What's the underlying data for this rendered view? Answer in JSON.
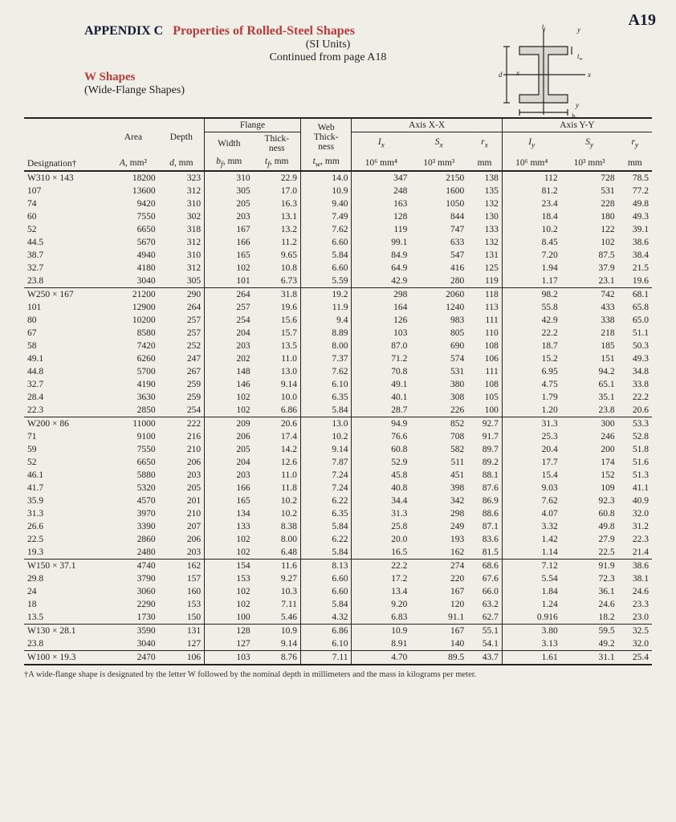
{
  "page_label": "A19",
  "appendix": "APPENDIX C",
  "title": "Properties of Rolled-Steel Shapes",
  "subtitle": "(SI Units)",
  "continued": "Continued from page A18",
  "section": "W Shapes",
  "section_sub": "(Wide-Flange Shapes)",
  "footnote": "†A wide-flange shape is designated by the letter W followed by the nominal depth in millimeters and the mass in kilograms per meter.",
  "colors": {
    "red": "#b93a3a",
    "text": "#222222",
    "bg": "#efefe7"
  },
  "headers": {
    "designation": "Designation†",
    "area": "Area",
    "area_u": "A, mm²",
    "depth": "Depth",
    "depth_u": "d, mm",
    "flange": "Flange",
    "width": "Width",
    "width_u": "b_f, mm",
    "fthick": "Thick-\nness",
    "fthick_u": "t_f, mm",
    "web": "Web\nThick-\nness",
    "web_u": "t_w, mm",
    "axisxx": "Axis X-X",
    "axisyy": "Axis Y-Y",
    "Ix": "I_x",
    "Ix_u": "10⁶ mm⁴",
    "Sx": "S_x",
    "Sx_u": "10³ mm³",
    "rx": "r_x",
    "rx_u": "mm",
    "Iy": "I_y",
    "Iy_u": "10⁶ mm⁴",
    "Sy": "S_y",
    "Sy_u": "10³ mm³",
    "ry": "r_y",
    "ry_u": "mm"
  },
  "groups": [
    {
      "prefix": "W310 ×",
      "rows": [
        {
          "m": "143",
          "A": "18200",
          "d": "323",
          "bf": "310",
          "tf": "22.9",
          "tw": "14.0",
          "Ix": "347",
          "Sx": "2150",
          "rx": "138",
          "Iy": "112",
          "Sy": "728",
          "ry": "78.5"
        },
        {
          "m": "107",
          "A": "13600",
          "d": "312",
          "bf": "305",
          "tf": "17.0",
          "tw": "10.9",
          "Ix": "248",
          "Sx": "1600",
          "rx": "135",
          "Iy": "81.2",
          "Sy": "531",
          "ry": "77.2"
        },
        {
          "m": "74",
          "A": "9420",
          "d": "310",
          "bf": "205",
          "tf": "16.3",
          "tw": "9.40",
          "Ix": "163",
          "Sx": "1050",
          "rx": "132",
          "Iy": "23.4",
          "Sy": "228",
          "ry": "49.8"
        },
        {
          "m": "60",
          "A": "7550",
          "d": "302",
          "bf": "203",
          "tf": "13.1",
          "tw": "7.49",
          "Ix": "128",
          "Sx": "844",
          "rx": "130",
          "Iy": "18.4",
          "Sy": "180",
          "ry": "49.3"
        },
        {
          "m": "52",
          "A": "6650",
          "d": "318",
          "bf": "167",
          "tf": "13.2",
          "tw": "7.62",
          "Ix": "119",
          "Sx": "747",
          "rx": "133",
          "Iy": "10.2",
          "Sy": "122",
          "ry": "39.1"
        },
        {
          "m": "44.5",
          "A": "5670",
          "d": "312",
          "bf": "166",
          "tf": "11.2",
          "tw": "6.60",
          "Ix": "99.1",
          "Sx": "633",
          "rx": "132",
          "Iy": "8.45",
          "Sy": "102",
          "ry": "38.6"
        },
        {
          "m": "38.7",
          "A": "4940",
          "d": "310",
          "bf": "165",
          "tf": "9.65",
          "tw": "5.84",
          "Ix": "84.9",
          "Sx": "547",
          "rx": "131",
          "Iy": "7.20",
          "Sy": "87.5",
          "ry": "38.4"
        },
        {
          "m": "32.7",
          "A": "4180",
          "d": "312",
          "bf": "102",
          "tf": "10.8",
          "tw": "6.60",
          "Ix": "64.9",
          "Sx": "416",
          "rx": "125",
          "Iy": "1.94",
          "Sy": "37.9",
          "ry": "21.5"
        },
        {
          "m": "23.8",
          "A": "3040",
          "d": "305",
          "bf": "101",
          "tf": "6.73",
          "tw": "5.59",
          "Ix": "42.9",
          "Sx": "280",
          "rx": "119",
          "Iy": "1.17",
          "Sy": "23.1",
          "ry": "19.6"
        }
      ]
    },
    {
      "prefix": "W250 ×",
      "rows": [
        {
          "m": "167",
          "A": "21200",
          "d": "290",
          "bf": "264",
          "tf": "31.8",
          "tw": "19.2",
          "Ix": "298",
          "Sx": "2060",
          "rx": "118",
          "Iy": "98.2",
          "Sy": "742",
          "ry": "68.1"
        },
        {
          "m": "101",
          "A": "12900",
          "d": "264",
          "bf": "257",
          "tf": "19.6",
          "tw": "11.9",
          "Ix": "164",
          "Sx": "1240",
          "rx": "113",
          "Iy": "55.8",
          "Sy": "433",
          "ry": "65.8"
        },
        {
          "m": "80",
          "A": "10200",
          "d": "257",
          "bf": "254",
          "tf": "15.6",
          "tw": "9.4",
          "Ix": "126",
          "Sx": "983",
          "rx": "111",
          "Iy": "42.9",
          "Sy": "338",
          "ry": "65.0"
        },
        {
          "m": "67",
          "A": "8580",
          "d": "257",
          "bf": "204",
          "tf": "15.7",
          "tw": "8.89",
          "Ix": "103",
          "Sx": "805",
          "rx": "110",
          "Iy": "22.2",
          "Sy": "218",
          "ry": "51.1"
        },
        {
          "m": "58",
          "A": "7420",
          "d": "252",
          "bf": "203",
          "tf": "13.5",
          "tw": "8.00",
          "Ix": "87.0",
          "Sx": "690",
          "rx": "108",
          "Iy": "18.7",
          "Sy": "185",
          "ry": "50.3"
        },
        {
          "m": "49.1",
          "A": "6260",
          "d": "247",
          "bf": "202",
          "tf": "11.0",
          "tw": "7.37",
          "Ix": "71.2",
          "Sx": "574",
          "rx": "106",
          "Iy": "15.2",
          "Sy": "151",
          "ry": "49.3"
        },
        {
          "m": "44.8",
          "A": "5700",
          "d": "267",
          "bf": "148",
          "tf": "13.0",
          "tw": "7.62",
          "Ix": "70.8",
          "Sx": "531",
          "rx": "111",
          "Iy": "6.95",
          "Sy": "94.2",
          "ry": "34.8"
        },
        {
          "m": "32.7",
          "A": "4190",
          "d": "259",
          "bf": "146",
          "tf": "9.14",
          "tw": "6.10",
          "Ix": "49.1",
          "Sx": "380",
          "rx": "108",
          "Iy": "4.75",
          "Sy": "65.1",
          "ry": "33.8"
        },
        {
          "m": "28.4",
          "A": "3630",
          "d": "259",
          "bf": "102",
          "tf": "10.0",
          "tw": "6.35",
          "Ix": "40.1",
          "Sx": "308",
          "rx": "105",
          "Iy": "1.79",
          "Sy": "35.1",
          "ry": "22.2"
        },
        {
          "m": "22.3",
          "A": "2850",
          "d": "254",
          "bf": "102",
          "tf": "6.86",
          "tw": "5.84",
          "Ix": "28.7",
          "Sx": "226",
          "rx": "100",
          "Iy": "1.20",
          "Sy": "23.8",
          "ry": "20.6"
        }
      ]
    },
    {
      "prefix": "W200 ×",
      "rows": [
        {
          "m": "86",
          "A": "11000",
          "d": "222",
          "bf": "209",
          "tf": "20.6",
          "tw": "13.0",
          "Ix": "94.9",
          "Sx": "852",
          "rx": "92.7",
          "Iy": "31.3",
          "Sy": "300",
          "ry": "53.3"
        },
        {
          "m": "71",
          "A": "9100",
          "d": "216",
          "bf": "206",
          "tf": "17.4",
          "tw": "10.2",
          "Ix": "76.6",
          "Sx": "708",
          "rx": "91.7",
          "Iy": "25.3",
          "Sy": "246",
          "ry": "52.8"
        },
        {
          "m": "59",
          "A": "7550",
          "d": "210",
          "bf": "205",
          "tf": "14.2",
          "tw": "9.14",
          "Ix": "60.8",
          "Sx": "582",
          "rx": "89.7",
          "Iy": "20.4",
          "Sy": "200",
          "ry": "51.8"
        },
        {
          "m": "52",
          "A": "6650",
          "d": "206",
          "bf": "204",
          "tf": "12.6",
          "tw": "7.87",
          "Ix": "52.9",
          "Sx": "511",
          "rx": "89.2",
          "Iy": "17.7",
          "Sy": "174",
          "ry": "51.6"
        },
        {
          "m": "46.1",
          "A": "5880",
          "d": "203",
          "bf": "203",
          "tf": "11.0",
          "tw": "7.24",
          "Ix": "45.8",
          "Sx": "451",
          "rx": "88.1",
          "Iy": "15.4",
          "Sy": "152",
          "ry": "51.3"
        },
        {
          "m": "41.7",
          "A": "5320",
          "d": "205",
          "bf": "166",
          "tf": "11.8",
          "tw": "7.24",
          "Ix": "40.8",
          "Sx": "398",
          "rx": "87.6",
          "Iy": "9.03",
          "Sy": "109",
          "ry": "41.1"
        },
        {
          "m": "35.9",
          "A": "4570",
          "d": "201",
          "bf": "165",
          "tf": "10.2",
          "tw": "6.22",
          "Ix": "34.4",
          "Sx": "342",
          "rx": "86.9",
          "Iy": "7.62",
          "Sy": "92.3",
          "ry": "40.9"
        },
        {
          "m": "31.3",
          "A": "3970",
          "d": "210",
          "bf": "134",
          "tf": "10.2",
          "tw": "6.35",
          "Ix": "31.3",
          "Sx": "298",
          "rx": "88.6",
          "Iy": "4.07",
          "Sy": "60.8",
          "ry": "32.0"
        },
        {
          "m": "26.6",
          "A": "3390",
          "d": "207",
          "bf": "133",
          "tf": "8.38",
          "tw": "5.84",
          "Ix": "25.8",
          "Sx": "249",
          "rx": "87.1",
          "Iy": "3.32",
          "Sy": "49.8",
          "ry": "31.2"
        },
        {
          "m": "22.5",
          "A": "2860",
          "d": "206",
          "bf": "102",
          "tf": "8.00",
          "tw": "6.22",
          "Ix": "20.0",
          "Sx": "193",
          "rx": "83.6",
          "Iy": "1.42",
          "Sy": "27.9",
          "ry": "22.3"
        },
        {
          "m": "19.3",
          "A": "2480",
          "d": "203",
          "bf": "102",
          "tf": "6.48",
          "tw": "5.84",
          "Ix": "16.5",
          "Sx": "162",
          "rx": "81.5",
          "Iy": "1.14",
          "Sy": "22.5",
          "ry": "21.4"
        }
      ]
    },
    {
      "prefix": "W150 ×",
      "rows": [
        {
          "m": "37.1",
          "A": "4740",
          "d": "162",
          "bf": "154",
          "tf": "11.6",
          "tw": "8.13",
          "Ix": "22.2",
          "Sx": "274",
          "rx": "68.6",
          "Iy": "7.12",
          "Sy": "91.9",
          "ry": "38.6"
        },
        {
          "m": "29.8",
          "A": "3790",
          "d": "157",
          "bf": "153",
          "tf": "9.27",
          "tw": "6.60",
          "Ix": "17.2",
          "Sx": "220",
          "rx": "67.6",
          "Iy": "5.54",
          "Sy": "72.3",
          "ry": "38.1"
        },
        {
          "m": "24",
          "A": "3060",
          "d": "160",
          "bf": "102",
          "tf": "10.3",
          "tw": "6.60",
          "Ix": "13.4",
          "Sx": "167",
          "rx": "66.0",
          "Iy": "1.84",
          "Sy": "36.1",
          "ry": "24.6"
        },
        {
          "m": "18",
          "A": "2290",
          "d": "153",
          "bf": "102",
          "tf": "7.11",
          "tw": "5.84",
          "Ix": "9.20",
          "Sx": "120",
          "rx": "63.2",
          "Iy": "1.24",
          "Sy": "24.6",
          "ry": "23.3"
        },
        {
          "m": "13.5",
          "A": "1730",
          "d": "150",
          "bf": "100",
          "tf": "5.46",
          "tw": "4.32",
          "Ix": "6.83",
          "Sx": "91.1",
          "rx": "62.7",
          "Iy": "0.916",
          "Sy": "18.2",
          "ry": "23.0"
        }
      ]
    },
    {
      "prefix": "W130 ×",
      "rows": [
        {
          "m": "28.1",
          "A": "3590",
          "d": "131",
          "bf": "128",
          "tf": "10.9",
          "tw": "6.86",
          "Ix": "10.9",
          "Sx": "167",
          "rx": "55.1",
          "Iy": "3.80",
          "Sy": "59.5",
          "ry": "32.5"
        },
        {
          "m": "23.8",
          "A": "3040",
          "d": "127",
          "bf": "127",
          "tf": "9.14",
          "tw": "6.10",
          "Ix": "8.91",
          "Sx": "140",
          "rx": "54.1",
          "Iy": "3.13",
          "Sy": "49.2",
          "ry": "32.0"
        }
      ]
    },
    {
      "prefix": "W100 ×",
      "rows": [
        {
          "m": "19.3",
          "A": "2470",
          "d": "106",
          "bf": "103",
          "tf": "8.76",
          "tw": "7.11",
          "Ix": "4.70",
          "Sx": "89.5",
          "rx": "43.7",
          "Iy": "1.61",
          "Sy": "31.1",
          "ry": "25.4"
        }
      ]
    }
  ]
}
